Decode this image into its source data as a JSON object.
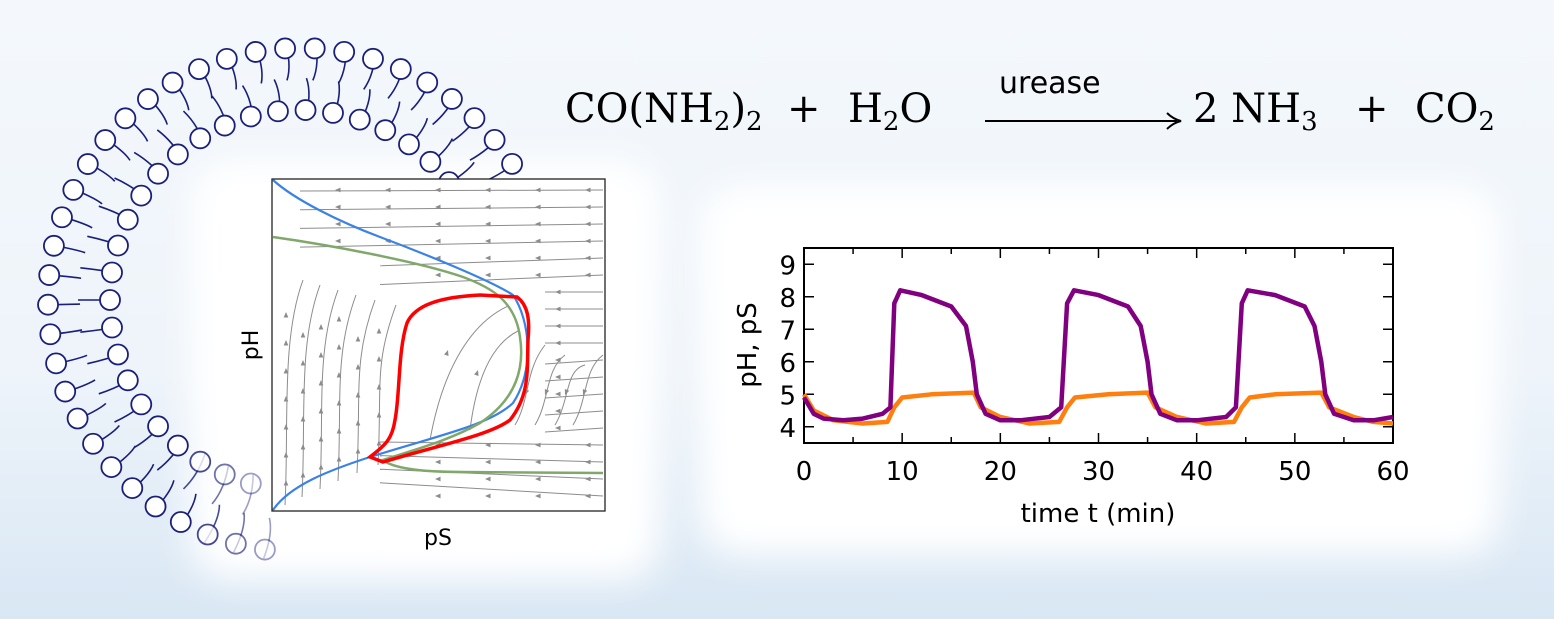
{
  "equation": {
    "reactant1": "CO(NH",
    "reactant1_sub": "2",
    "reactant1_close": ")",
    "reactant1_sub2": "2",
    "plus1": "+",
    "reactant2": "H",
    "reactant2_sub": "2",
    "reactant2_tail": "O",
    "catalyst": "urease",
    "product1_coef": "2",
    "product1": "NH",
    "product1_sub": "3",
    "plus2": "+",
    "product2": "CO",
    "product2_sub": "2"
  },
  "phase_portrait": {
    "xlabel": "pS",
    "ylabel": "pH",
    "colors": {
      "nullcline_1": "#3b82e6",
      "nullcline_2": "#7fa86a",
      "limit_cycle": "#ff0000",
      "streamlines": "#8c8c8c"
    }
  },
  "membrane": {
    "head_color": "#1a1f7a",
    "tail_color": "#1a1f7a"
  },
  "chart_data": {
    "type": "line",
    "title": "",
    "xlabel": "time t (min)",
    "ylabel": "pH, pS",
    "xlim": [
      0,
      60
    ],
    "ylim": [
      3.5,
      9.5
    ],
    "xticks": [
      "0",
      "10",
      "20",
      "30",
      "40",
      "50",
      "60"
    ],
    "yticks": [
      "4",
      "5",
      "6",
      "7",
      "8",
      "9"
    ],
    "grid": false,
    "series": [
      {
        "color": "#800080",
        "x": [
          0,
          1,
          2,
          4,
          6,
          8,
          8.8,
          9.2,
          9.8,
          12,
          15,
          16.5,
          17.2,
          17.6,
          18.5,
          20,
          22,
          25,
          26.2,
          26.8,
          27.5,
          30,
          33,
          34.3,
          35,
          35.4,
          36.3,
          38,
          40,
          43,
          44,
          44.6,
          45.2,
          48,
          51,
          52,
          52.7,
          53.1,
          54,
          56,
          58,
          60
        ],
        "y": [
          4.9,
          4.4,
          4.25,
          4.2,
          4.25,
          4.4,
          4.6,
          7.8,
          8.2,
          8.05,
          7.7,
          7.1,
          6,
          5,
          4.4,
          4.2,
          4.2,
          4.3,
          4.6,
          7.8,
          8.2,
          8.05,
          7.7,
          7.1,
          6,
          5,
          4.4,
          4.2,
          4.2,
          4.3,
          4.6,
          7.8,
          8.2,
          8.05,
          7.7,
          7.1,
          6,
          5,
          4.4,
          4.2,
          4.2,
          4.3
        ]
      },
      {
        "color": "#ff7f0e",
        "x": [
          0,
          1,
          3,
          6,
          8.5,
          9.2,
          10,
          13,
          17.3,
          18,
          20,
          23,
          26,
          26.8,
          27.6,
          31,
          35,
          35.8,
          38,
          41,
          43.8,
          44.6,
          45.4,
          48,
          52.7,
          53.5,
          56,
          58,
          60
        ],
        "y": [
          5.0,
          4.5,
          4.2,
          4.1,
          4.15,
          4.6,
          4.9,
          5.0,
          5.05,
          4.6,
          4.3,
          4.1,
          4.15,
          4.6,
          4.9,
          5.0,
          5.05,
          4.6,
          4.3,
          4.1,
          4.15,
          4.6,
          4.9,
          5.0,
          5.05,
          4.6,
          4.3,
          4.15,
          4.1
        ]
      }
    ]
  }
}
